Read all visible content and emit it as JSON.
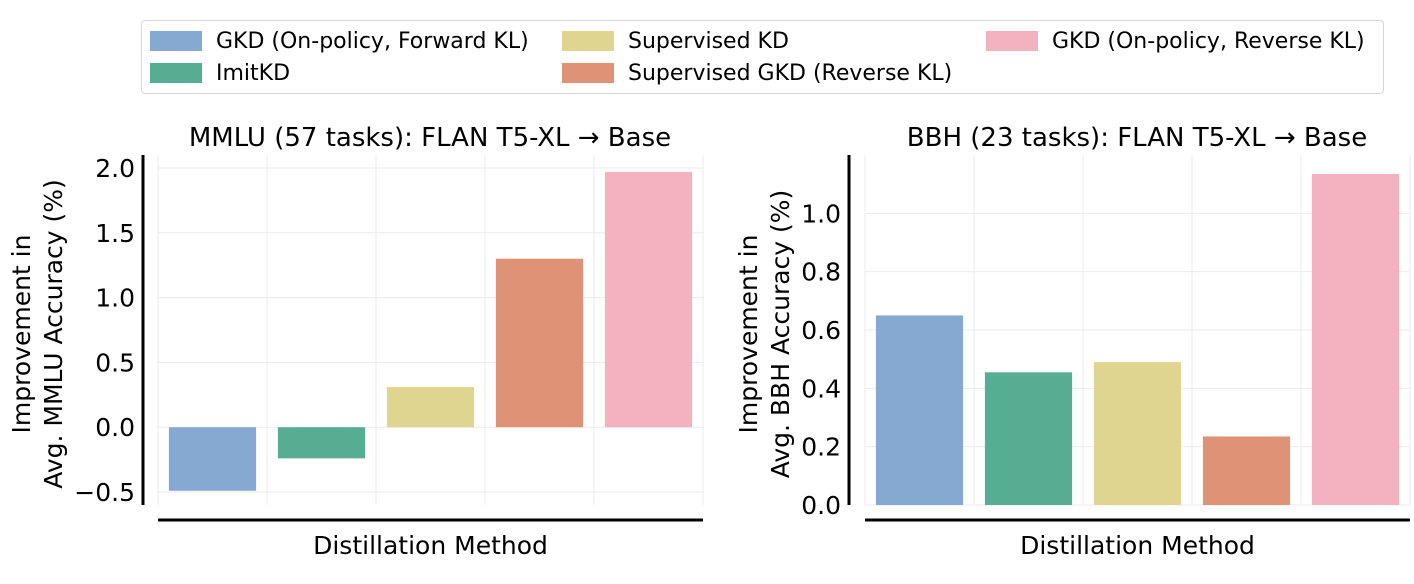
{
  "legend": [
    {
      "label": "GKD (On-policy, Forward KL)",
      "color": "#85a9d0"
    },
    {
      "label": "ImitKD",
      "color": "#57ad92"
    },
    {
      "label": "Supervised KD",
      "color": "#e0d491"
    },
    {
      "label": "Supervised GKD (Reverse KL)",
      "color": "#de9276"
    },
    {
      "label": "GKD (On-policy, Reverse KL)",
      "color": "#f3b2bf"
    }
  ],
  "chart_data": [
    {
      "type": "bar",
      "title": "MMLU (57 tasks): FLAN T5-XL → Base",
      "xlabel": "Distillation Method",
      "ylabel_lines": [
        "Improvement in",
        "Avg. MMLU Accuracy (%)"
      ],
      "categories": [
        "GKD (On-policy, Forward KL)",
        "ImitKD",
        "Supervised KD",
        "Supervised GKD (Reverse KL)",
        "GKD (On-policy, Reverse KL)"
      ],
      "values": [
        -0.49,
        -0.24,
        0.31,
        1.3,
        1.97
      ],
      "ylim": [
        -0.6,
        2.1
      ],
      "yticks": [
        -0.5,
        0.0,
        0.5,
        1.0,
        1.5,
        2.0
      ],
      "ytick_labels": [
        "−0.5",
        "0.0",
        "0.5",
        "1.0",
        "1.5",
        "2.0"
      ],
      "grid": true
    },
    {
      "type": "bar",
      "title": "BBH (23 tasks): FLAN T5-XL → Base",
      "xlabel": "Distillation Method",
      "ylabel_lines": [
        "Improvement in",
        "Avg. BBH Accuracy (%)"
      ],
      "categories": [
        "GKD (On-policy, Forward KL)",
        "ImitKD",
        "Supervised KD",
        "Supervised GKD (Reverse KL)",
        "GKD (On-policy, Reverse KL)"
      ],
      "values": [
        0.65,
        0.455,
        0.49,
        0.235,
        1.135
      ],
      "ylim": [
        0.0,
        1.2
      ],
      "yticks": [
        0.0,
        0.2,
        0.4,
        0.6,
        0.8,
        1.0
      ],
      "ytick_labels": [
        "0.0",
        "0.2",
        "0.4",
        "0.6",
        "0.8",
        "1.0"
      ],
      "grid": true
    }
  ]
}
